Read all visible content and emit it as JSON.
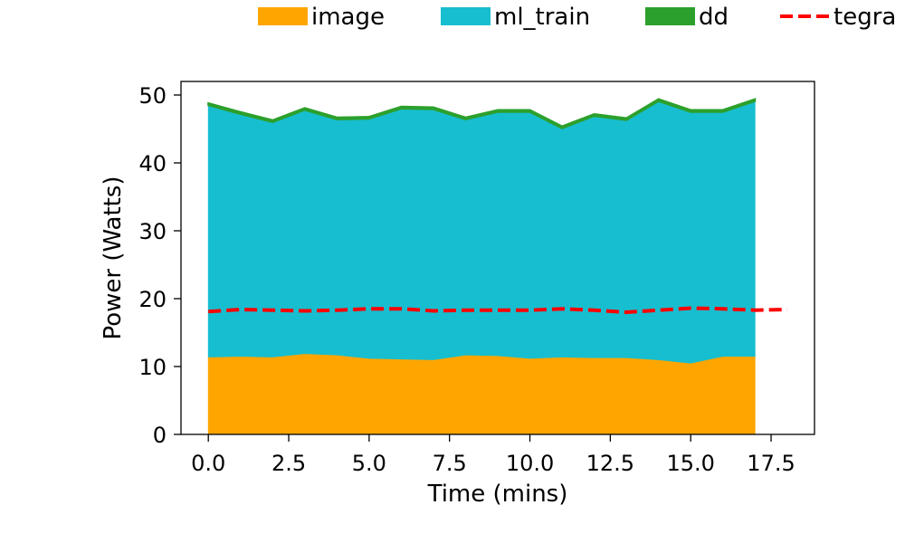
{
  "chart_data": {
    "type": "area",
    "xlabel": "Time (mins)",
    "ylabel": "Power (Watts)",
    "xlim": [
      -0.85,
      18.85
    ],
    "ylim": [
      0,
      52
    ],
    "x_ticks": [
      0.0,
      2.5,
      5.0,
      7.5,
      10.0,
      12.5,
      15.0,
      17.5
    ],
    "x_tick_labels": [
      "0.0",
      "2.5",
      "5.0",
      "7.5",
      "10.0",
      "12.5",
      "15.0",
      "17.5"
    ],
    "y_ticks": [
      0,
      10,
      20,
      30,
      40,
      50
    ],
    "y_tick_labels": [
      "0",
      "10",
      "20",
      "30",
      "40",
      "50"
    ],
    "grid": false,
    "legend_position": "top, outside plot",
    "x": [
      0,
      1,
      2,
      3,
      4,
      5,
      6,
      7,
      8,
      9,
      10,
      11,
      12,
      13,
      14,
      15,
      16,
      17
    ],
    "series": [
      {
        "name": "image",
        "kind": "stacked-area",
        "color": "#ffa500",
        "values": [
          11.4,
          11.5,
          11.4,
          11.9,
          11.7,
          11.2,
          11.1,
          11.0,
          11.7,
          11.6,
          11.2,
          11.4,
          11.3,
          11.3,
          11.0,
          10.5,
          11.5,
          11.5
        ]
      },
      {
        "name": "ml_train",
        "kind": "stacked-area",
        "color": "#17becf",
        "values": [
          37.1,
          35.7,
          34.6,
          35.9,
          34.7,
          35.3,
          36.9,
          36.9,
          34.7,
          35.9,
          36.3,
          33.7,
          35.6,
          35.0,
          38.1,
          37.0,
          36.0,
          37.6
        ]
      },
      {
        "name": "dd",
        "kind": "stacked-area",
        "color": "#2ca02c",
        "values": [
          0.3,
          0.3,
          0.3,
          0.3,
          0.3,
          0.3,
          0.3,
          0.3,
          0.3,
          0.3,
          0.3,
          0.3,
          0.3,
          0.3,
          0.3,
          0.3,
          0.3,
          0.3
        ]
      },
      {
        "name": "tegra",
        "kind": "dashed-line",
        "color": "#ff0000",
        "x": [
          0,
          1,
          2,
          3,
          4,
          5,
          6,
          7,
          8,
          9,
          10,
          11,
          12,
          13,
          14,
          15,
          16,
          17,
          18
        ],
        "values": [
          18.1,
          18.4,
          18.3,
          18.2,
          18.3,
          18.5,
          18.5,
          18.2,
          18.3,
          18.3,
          18.3,
          18.5,
          18.3,
          18.0,
          18.3,
          18.6,
          18.5,
          18.3,
          18.4
        ]
      }
    ]
  }
}
